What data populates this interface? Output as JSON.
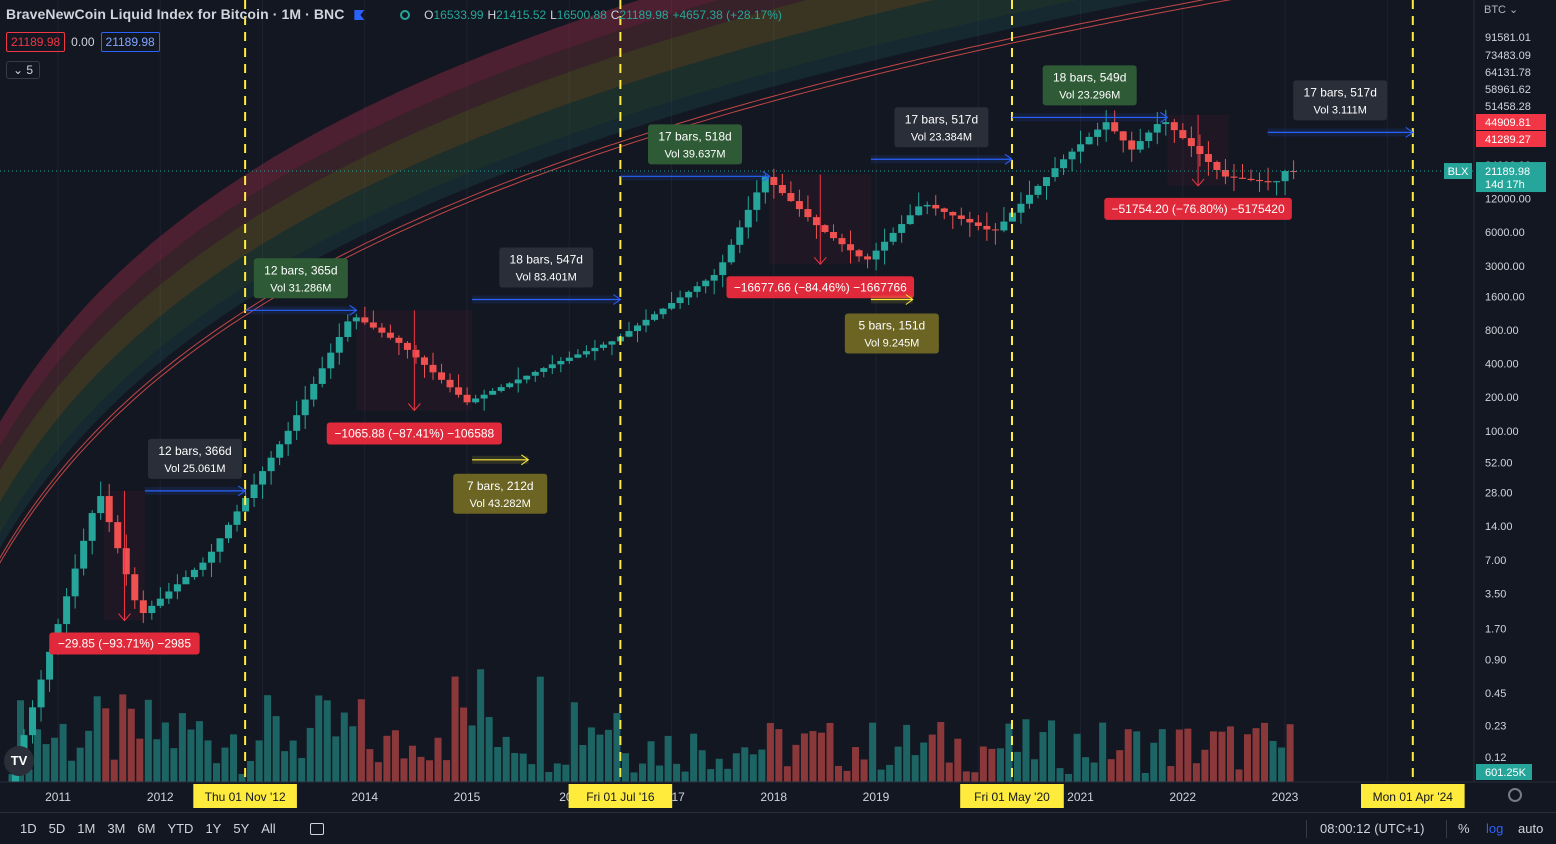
{
  "header": {
    "title": "BraveNewCoin Liquid Index for Bitcoin · 1M · BNC",
    "ohlc": [
      {
        "k": "O",
        "v": "16533.99"
      },
      {
        "k": "H",
        "v": "21415.52"
      },
      {
        "k": "L",
        "v": "16500.88"
      },
      {
        "k": "C",
        "v": "21189.98"
      }
    ],
    "change": "+4657.38 (+28.17%)",
    "sell": "21189.98",
    "spread": "0.00",
    "buy": "21189.98",
    "indicator_count": "5",
    "currency": "BTC"
  },
  "logo_text": "TV",
  "colors": {
    "up": "#26a69a",
    "down": "#ef5350",
    "accent": "#2962ff",
    "vline": "#ffeb3b",
    "bg": "#131722"
  },
  "chart_data": {
    "type": "candlestick",
    "y_scale": "log",
    "ylim": [
      0.12,
      300000
    ],
    "y_ticks": [
      "0.12",
      "0.23",
      "0.45",
      "0.90",
      "1.70",
      "3.50",
      "7.00",
      "14.00",
      "28.00",
      "52.00",
      "100.00",
      "200.00",
      "400.00",
      "800.00",
      "1600.00",
      "3000.00",
      "6000.00",
      "12000.00",
      "24000.00",
      "41289.27",
      "44909.81",
      "51458.28",
      "58961.62",
      "64131.78",
      "73483.09",
      "91581.01"
    ],
    "x_ticks": [
      {
        "label": "2011",
        "year": 2011.0
      },
      {
        "label": "2012",
        "year": 2012.0
      },
      {
        "label": "2014",
        "year": 2014.0
      },
      {
        "label": "2015",
        "year": 2015.0
      },
      {
        "label": "201",
        "year": 2016.0
      },
      {
        "label": "2017",
        "year": 2017.0
      },
      {
        "label": "2018",
        "year": 2018.0
      },
      {
        "label": "2019",
        "year": 2019.0
      },
      {
        "label": "2021",
        "year": 2021.0
      },
      {
        "label": "2022",
        "year": 2022.0
      },
      {
        "label": "2023",
        "year": 2023.0
      }
    ],
    "vlines": [
      {
        "label": "Thu 01 Nov '12",
        "year": 2012.83
      },
      {
        "label": "Fri 01 Jul '16",
        "year": 2016.5
      },
      {
        "label": "Fri 01 May '20",
        "year": 2020.33
      },
      {
        "label": "Mon 01 Apr '24",
        "year": 2024.25
      }
    ],
    "last_price": {
      "symbol": "BLX",
      "value": "21189.98",
      "countdown": "14d 17h",
      "level": 21189.98
    },
    "volume_label": "601.25K",
    "key_points": [
      {
        "year": 2010.55,
        "price": 0.06
      },
      {
        "year": 2011.45,
        "price": 29
      },
      {
        "year": 2011.85,
        "price": 2.2
      },
      {
        "year": 2012.5,
        "price": 7
      },
      {
        "year": 2013.3,
        "price": 100
      },
      {
        "year": 2013.92,
        "price": 1100
      },
      {
        "year": 2014.4,
        "price": 600
      },
      {
        "year": 2015.05,
        "price": 180
      },
      {
        "year": 2015.9,
        "price": 400
      },
      {
        "year": 2016.5,
        "price": 650
      },
      {
        "year": 2017.5,
        "price": 2600
      },
      {
        "year": 2017.96,
        "price": 19000
      },
      {
        "year": 2018.5,
        "price": 6500
      },
      {
        "year": 2018.95,
        "price": 3300
      },
      {
        "year": 2019.5,
        "price": 11000
      },
      {
        "year": 2020.2,
        "price": 6000
      },
      {
        "year": 2020.9,
        "price": 28000
      },
      {
        "year": 2021.3,
        "price": 58000
      },
      {
        "year": 2021.55,
        "price": 33000
      },
      {
        "year": 2021.85,
        "price": 62000
      },
      {
        "year": 2022.45,
        "price": 19000
      },
      {
        "year": 2022.95,
        "price": 16500
      },
      {
        "year": 2023.05,
        "price": 21189.98
      }
    ],
    "annotations": [
      {
        "kind": "drop",
        "text": "−29.85 (−93.71%) −2985",
        "y1": 2011.45,
        "y2": 2011.85,
        "p1": 29,
        "p2": 2.0
      },
      {
        "kind": "drop",
        "text": "−1065.88 (−87.41%) −106588",
        "y1": 2013.92,
        "y2": 2015.05,
        "p1": 1200,
        "p2": 152
      },
      {
        "kind": "drop",
        "text": "−16677.66 (−84.46%) −1667766",
        "y1": 2017.96,
        "y2": 2018.95,
        "p1": 19700,
        "p2": 3100
      },
      {
        "kind": "drop",
        "text": "−51754.20 (−76.80%) −5175420",
        "y1": 2021.85,
        "y2": 2022.45,
        "p1": 67500,
        "p2": 15600
      },
      {
        "kind": "span",
        "line1": "12 bars, 366d",
        "line2": "Vol 25.061M",
        "y1": 2011.85,
        "y2": 2012.83,
        "p": 29,
        "style": "dark"
      },
      {
        "kind": "span",
        "line1": "12 bars, 365d",
        "line2": "Vol 31.286M",
        "y1": 2012.83,
        "y2": 2013.92,
        "p": 1200,
        "style": "green"
      },
      {
        "kind": "span",
        "line1": "18 bars, 547d",
        "line2": "Vol 83.401M",
        "y1": 2015.05,
        "y2": 2016.5,
        "p": 1500,
        "style": "dark"
      },
      {
        "kind": "span",
        "line1": "7 bars, 212d",
        "line2": "Vol 43.282M",
        "y1": 2015.05,
        "y2": 2015.6,
        "p": 55,
        "style": "olive"
      },
      {
        "kind": "span",
        "line1": "17 bars, 518d",
        "line2": "Vol 39.637M",
        "y1": 2016.5,
        "y2": 2017.96,
        "p": 19000,
        "style": "green"
      },
      {
        "kind": "span",
        "line1": "17 bars, 517d",
        "line2": "Vol 23.384M",
        "y1": 2018.95,
        "y2": 2020.33,
        "p": 27000,
        "style": "dark"
      },
      {
        "kind": "span",
        "line1": "5 bars, 151d",
        "line2": "Vol 9.245M",
        "y1": 2018.95,
        "y2": 2019.36,
        "p": 1500,
        "style": "olive"
      },
      {
        "kind": "span",
        "line1": "18 bars, 549d",
        "line2": "Vol 23.296M",
        "y1": 2020.33,
        "y2": 2021.85,
        "p": 64000,
        "style": "green"
      },
      {
        "kind": "span",
        "line1": "17 bars, 517d",
        "line2": "Vol 3.111M",
        "y1": 2022.83,
        "y2": 2024.25,
        "p": 47000,
        "style": "dark"
      }
    ]
  },
  "bottom": {
    "ranges": [
      "1D",
      "5D",
      "1M",
      "3M",
      "6M",
      "YTD",
      "1Y",
      "5Y",
      "All"
    ],
    "clock": "08:00:12 (UTC+1)",
    "pct": "%",
    "log": "log",
    "auto": "auto"
  }
}
